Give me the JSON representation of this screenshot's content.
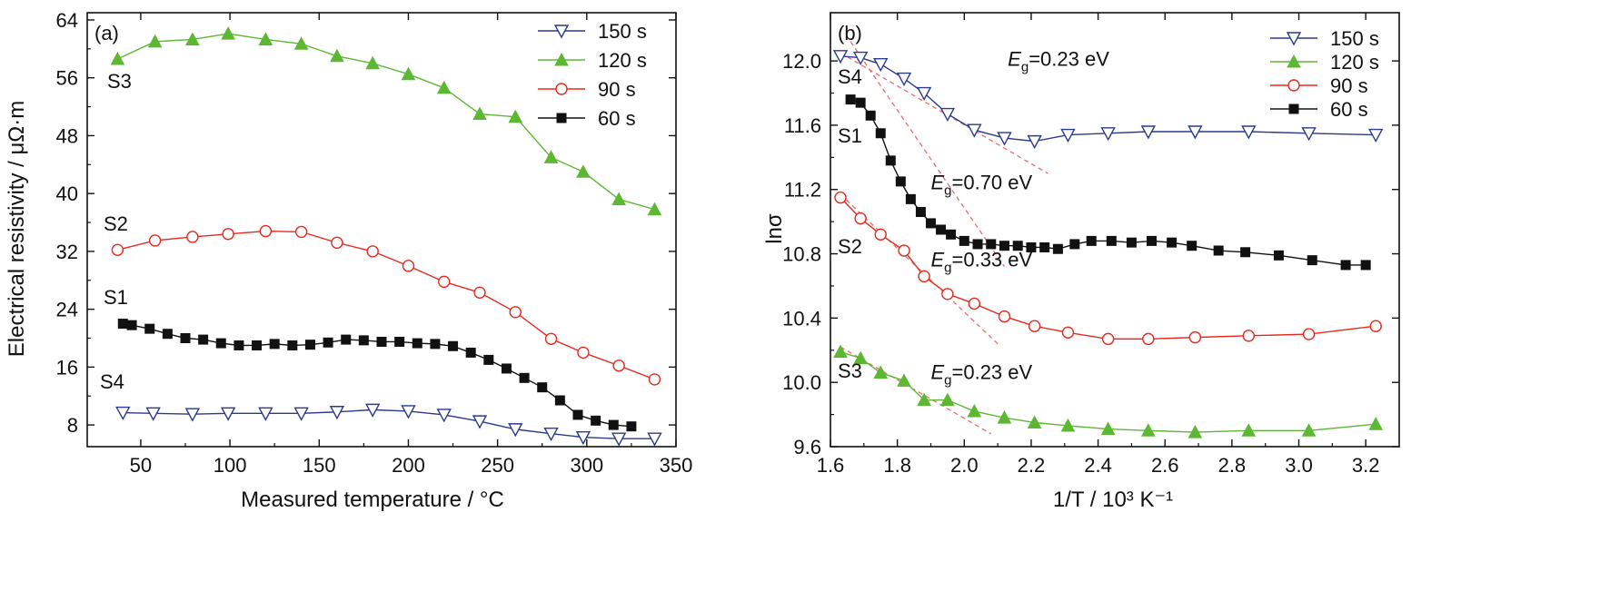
{
  "chart_data": [
    {
      "type": "line",
      "panel_label": "(a)",
      "xlabel": "Measured  temperature / °C",
      "ylabel": "Electrical resistivity / μΩ·m",
      "xlim": [
        20,
        350
      ],
      "ylim": [
        5,
        65
      ],
      "xticks": [
        50,
        100,
        150,
        200,
        250,
        300,
        350
      ],
      "yticks": [
        8,
        16,
        24,
        32,
        40,
        48,
        56,
        64
      ],
      "xtick_labels": [
        "50",
        "100",
        "150",
        "200",
        "250",
        "300",
        "350"
      ],
      "ytick_labels": [
        "8",
        "16",
        "24",
        "32",
        "40",
        "48",
        "56",
        "64"
      ],
      "grid": false,
      "legend_position": "top-right",
      "series": [
        {
          "name": "150 s",
          "curve_label": "S4",
          "color": "#2a3a8c",
          "marker": "triangle-down-open",
          "x": [
            40,
            57,
            79,
            99,
            120,
            140,
            160,
            180,
            200,
            220,
            240,
            260,
            280,
            298,
            318,
            338
          ],
          "y": [
            9.7,
            9.6,
            9.5,
            9.6,
            9.6,
            9.6,
            9.8,
            10.1,
            9.9,
            9.4,
            8.5,
            7.4,
            6.8,
            6.3,
            6.1,
            6.1
          ]
        },
        {
          "name": "120 s",
          "curve_label": "S3",
          "color": "#5cb832",
          "marker": "triangle-up-filled",
          "x": [
            37,
            58,
            79,
            99,
            120,
            140,
            160,
            180,
            200,
            220,
            240,
            260,
            280,
            298,
            318,
            338
          ],
          "y": [
            58.6,
            61.0,
            61.3,
            62.1,
            61.3,
            60.7,
            59.0,
            58.0,
            56.5,
            54.6,
            51.0,
            50.6,
            45.0,
            43.0,
            39.2,
            37.8
          ]
        },
        {
          "name": "90 s",
          "curve_label": "S2",
          "color": "#e8281e",
          "marker": "circle-open",
          "x": [
            37,
            58,
            79,
            99,
            120,
            140,
            160,
            180,
            200,
            220,
            240,
            260,
            280,
            298,
            318,
            338
          ],
          "y": [
            32.2,
            33.5,
            34.0,
            34.4,
            34.8,
            34.7,
            33.2,
            32.0,
            30.0,
            27.8,
            26.3,
            23.6,
            19.9,
            18.0,
            16.2,
            14.3
          ]
        },
        {
          "name": "60 s",
          "curve_label": "S1",
          "color": "#111111",
          "marker": "square-filled",
          "x": [
            40,
            45,
            55,
            65,
            75,
            85,
            95,
            105,
            115,
            125,
            135,
            145,
            155,
            165,
            175,
            185,
            195,
            205,
            215,
            225,
            235,
            245,
            255,
            265,
            275,
            285,
            295,
            305,
            315,
            325
          ],
          "y": [
            22.0,
            21.8,
            21.3,
            20.6,
            20.0,
            19.8,
            19.3,
            19.0,
            19.0,
            19.2,
            19.0,
            19.1,
            19.4,
            19.8,
            19.7,
            19.5,
            19.5,
            19.3,
            19.2,
            18.9,
            18.0,
            17.0,
            15.8,
            14.5,
            13.2,
            11.4,
            9.4,
            8.6,
            8.0,
            7.8
          ]
        }
      ],
      "annotations": []
    },
    {
      "type": "line",
      "panel_label": "(b)",
      "xlabel": "1/T / 10³ K⁻¹",
      "ylabel": "lnσ",
      "xlim": [
        1.6,
        3.3
      ],
      "ylim": [
        9.6,
        12.3
      ],
      "xticks": [
        1.6,
        1.8,
        2.0,
        2.2,
        2.4,
        2.6,
        2.8,
        3.0,
        3.2
      ],
      "yticks": [
        9.6,
        10.0,
        10.4,
        10.8,
        11.2,
        11.6,
        12.0
      ],
      "xtick_labels": [
        "1.6",
        "1.8",
        "2.0",
        "2.2",
        "2.4",
        "2.6",
        "2.8",
        "3.0",
        "3.2"
      ],
      "ytick_labels": [
        "9.6",
        "10.0",
        "10.4",
        "10.8",
        "11.2",
        "11.6",
        "12.0"
      ],
      "grid": false,
      "legend_position": "top-right",
      "series": [
        {
          "name": "150 s",
          "curve_label": "S4",
          "color": "#2a3a8c",
          "marker": "triangle-down-open",
          "x": [
            1.63,
            1.69,
            1.75,
            1.82,
            1.88,
            1.95,
            2.03,
            2.12,
            2.21,
            2.31,
            2.43,
            2.55,
            2.69,
            2.85,
            3.03,
            3.23
          ],
          "y": [
            12.03,
            12.02,
            11.98,
            11.89,
            11.8,
            11.67,
            11.57,
            11.52,
            11.5,
            11.54,
            11.55,
            11.56,
            11.56,
            11.56,
            11.55,
            11.54
          ]
        },
        {
          "name": "120 s",
          "curve_label": "S3",
          "color": "#5cb832",
          "marker": "triangle-up-filled",
          "x": [
            1.63,
            1.69,
            1.75,
            1.82,
            1.88,
            1.95,
            2.03,
            2.12,
            2.21,
            2.31,
            2.43,
            2.55,
            2.69,
            2.85,
            3.03,
            3.23
          ],
          "y": [
            10.19,
            10.15,
            10.06,
            10.01,
            9.89,
            9.89,
            9.82,
            9.78,
            9.75,
            9.73,
            9.71,
            9.7,
            9.69,
            9.7,
            9.7,
            9.74
          ]
        },
        {
          "name": "90 s",
          "curve_label": "S2",
          "color": "#e8281e",
          "marker": "circle-open",
          "x": [
            1.63,
            1.69,
            1.75,
            1.82,
            1.88,
            1.95,
            2.03,
            2.12,
            2.21,
            2.31,
            2.43,
            2.55,
            2.69,
            2.85,
            3.03,
            3.23
          ],
          "y": [
            11.15,
            11.02,
            10.92,
            10.82,
            10.66,
            10.55,
            10.49,
            10.41,
            10.35,
            10.31,
            10.27,
            10.27,
            10.28,
            10.29,
            10.3,
            10.35
          ]
        },
        {
          "name": "60 s",
          "curve_label": "S1",
          "color": "#111111",
          "marker": "square-filled",
          "x": [
            1.66,
            1.69,
            1.72,
            1.75,
            1.78,
            1.81,
            1.84,
            1.87,
            1.9,
            1.93,
            1.96,
            2.0,
            2.04,
            2.08,
            2.12,
            2.16,
            2.2,
            2.24,
            2.28,
            2.33,
            2.38,
            2.44,
            2.5,
            2.56,
            2.62,
            2.68,
            2.76,
            2.84,
            2.94,
            3.04,
            3.14,
            3.2
          ],
          "y": [
            11.76,
            11.74,
            11.66,
            11.55,
            11.38,
            11.25,
            11.14,
            11.06,
            10.99,
            10.95,
            10.92,
            10.88,
            10.86,
            10.86,
            10.85,
            10.85,
            10.84,
            10.84,
            10.83,
            10.86,
            10.88,
            10.88,
            10.87,
            10.88,
            10.87,
            10.85,
            10.82,
            10.81,
            10.79,
            10.76,
            10.73,
            10.73
          ]
        }
      ],
      "annotations": [
        {
          "text_main": "E",
          "text_sub": "g",
          "text_value": "=0.23 eV",
          "x": 2.13,
          "y": 11.97
        },
        {
          "text_main": "E",
          "text_sub": "g",
          "text_value": "=0.70 eV",
          "x": 1.9,
          "y": 11.2
        },
        {
          "text_main": "E",
          "text_sub": "g",
          "text_value": "=0.33 eV",
          "x": 1.9,
          "y": 10.72
        },
        {
          "text_main": "E",
          "text_sub": "g",
          "text_value": "=0.23 eV",
          "x": 1.9,
          "y": 10.02
        }
      ],
      "fit_lines": [
        {
          "color": "#ee6a6a",
          "x": [
            1.63,
            2.25
          ],
          "y": [
            12.05,
            11.3
          ]
        },
        {
          "color": "#ee6a6a",
          "x": [
            1.66,
            2.12
          ],
          "y": [
            12.12,
            10.72
          ]
        },
        {
          "color": "#ee6a6a",
          "x": [
            1.63,
            2.1
          ],
          "y": [
            11.17,
            10.24
          ]
        },
        {
          "color": "#ee6a6a",
          "x": [
            1.63,
            2.08
          ],
          "y": [
            10.22,
            9.68
          ]
        }
      ]
    }
  ]
}
